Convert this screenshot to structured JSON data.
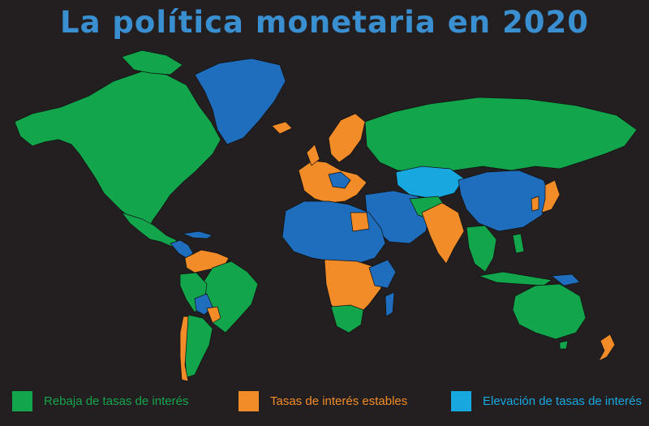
{
  "title": "La política monetaria en 2020",
  "colors": {
    "background": "#231f20",
    "title": "#3a8fd0",
    "rate_cut": "#13a54b",
    "stable": "#f28c28",
    "hike_dark": "#1f6dbd",
    "hike_light": "#18a8e0",
    "border": "#111111"
  },
  "legend": [
    {
      "label": "Rebaja de tasas de interés",
      "color": "#13a54b"
    },
    {
      "label": "Tasas de interés estables",
      "color": "#f28c28"
    },
    {
      "label": "Elevación de tasas de interés",
      "color": "#18a8e0"
    }
  ]
}
